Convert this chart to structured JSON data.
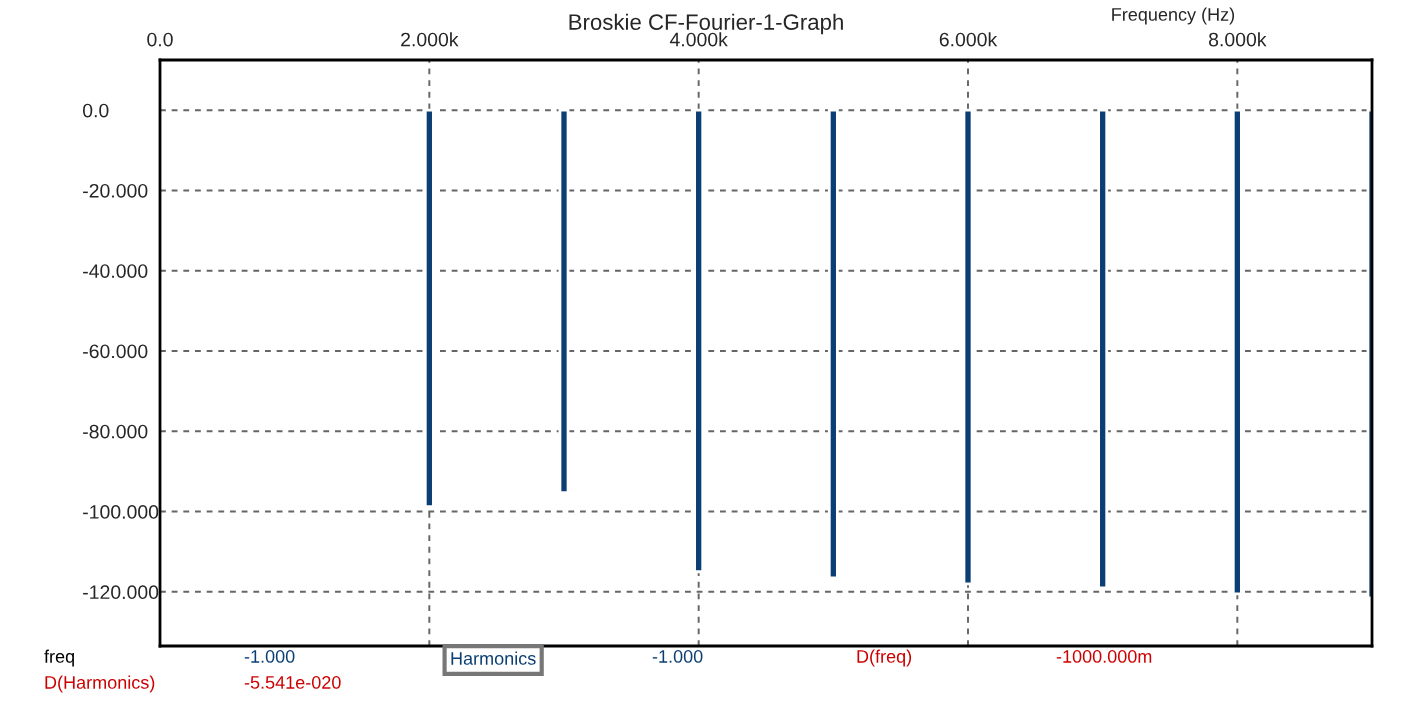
{
  "chart_data": {
    "type": "bar",
    "title": "Broskie CF-Fourier-1-Graph",
    "xlabel": "Frequency (Hz)",
    "x": [
      2000,
      3000,
      4000,
      5000,
      6000,
      7000,
      8000,
      9000
    ],
    "series": [
      {
        "color": "#0b3f73",
        "values": [
          -98.8,
          -95.3,
          -115,
          -116.5,
          -118,
          -119,
          -120.5,
          -121.5
        ]
      }
    ],
    "xlim": [
      0,
      9000
    ],
    "ylim": [
      -133.5,
      12.5
    ],
    "xticks": [
      {
        "value": 0,
        "label": "0.0"
      },
      {
        "value": 2000,
        "label": "2.000k"
      },
      {
        "value": 4000,
        "label": "4.000k"
      },
      {
        "value": 6000,
        "label": "6.000k"
      },
      {
        "value": 8000,
        "label": "8.000k"
      }
    ],
    "yticks": [
      {
        "value": 0,
        "label": "0.0"
      },
      {
        "value": -20,
        "label": "-20.000"
      },
      {
        "value": -40,
        "label": "-40.000"
      },
      {
        "value": -60,
        "label": "-60.000"
      },
      {
        "value": -80,
        "label": "-80.000"
      },
      {
        "value": -100,
        "label": "-100.000"
      },
      {
        "value": -120,
        "label": "-120.000"
      }
    ],
    "grid": true,
    "annotations": [
      "freq",
      "-1.000",
      "Harmonics",
      "-1.000",
      "D(freq)",
      "-1000.000m",
      "D(Harmonics)",
      "-5.541e-020"
    ]
  }
}
